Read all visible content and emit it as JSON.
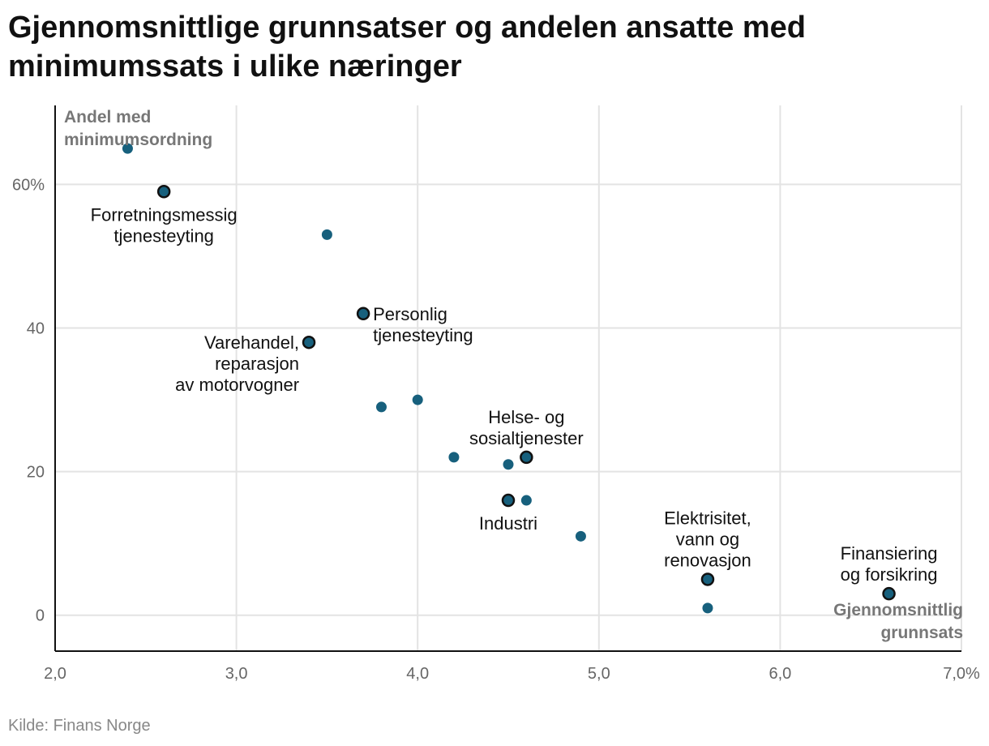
{
  "title": "Gjennomsnittlige grunnsatser og andelen ansatte med minimumssats i ulike næringer",
  "source": "Kilde: Finans Norge",
  "chart_data": {
    "type": "scatter",
    "title": "Gjennomsnittlige grunnsatser og andelen ansatte med minimumssats i ulike næringer",
    "xlabel": "Gjennomsnittlig grunnsats",
    "ylabel": "Andel med minimumsordning",
    "xlim": [
      2.0,
      7.0
    ],
    "ylim": [
      -5,
      71
    ],
    "x_ticks": [
      {
        "value": 2.0,
        "label": "2,0"
      },
      {
        "value": 3.0,
        "label": "3,0"
      },
      {
        "value": 4.0,
        "label": "4,0"
      },
      {
        "value": 5.0,
        "label": "5,0"
      },
      {
        "value": 6.0,
        "label": "6,0"
      },
      {
        "value": 7.0,
        "label": "7,0%"
      }
    ],
    "y_ticks": [
      {
        "value": 0,
        "label": "0"
      },
      {
        "value": 20,
        "label": "20"
      },
      {
        "value": 40,
        "label": "40"
      },
      {
        "value": 60,
        "label": "60%"
      }
    ],
    "colors": {
      "point": "#17607d",
      "highlight_stroke": "#111111",
      "grid": "#e3e3e3"
    },
    "points": [
      {
        "x": 2.4,
        "y": 65,
        "highlight": false
      },
      {
        "x": 2.6,
        "y": 59,
        "highlight": true,
        "label": [
          "Forretningsmessig",
          "tjenesteyting"
        ],
        "anchor": "middle"
      },
      {
        "x": 3.5,
        "y": 53,
        "highlight": false
      },
      {
        "x": 3.7,
        "y": 42,
        "highlight": true,
        "label": [
          "Personlig",
          "tjenesteyting"
        ],
        "anchor": "start"
      },
      {
        "x": 3.4,
        "y": 38,
        "highlight": true,
        "label": [
          "Varehandel,",
          "reparasjon",
          "av motorvogner"
        ],
        "anchor": "end"
      },
      {
        "x": 3.8,
        "y": 29,
        "highlight": false
      },
      {
        "x": 4.0,
        "y": 30,
        "highlight": false
      },
      {
        "x": 4.2,
        "y": 22,
        "highlight": false
      },
      {
        "x": 4.5,
        "y": 21,
        "highlight": false
      },
      {
        "x": 4.6,
        "y": 22,
        "highlight": true,
        "label": [
          "Helse- og",
          "sosialtjenester"
        ],
        "anchor": "middle"
      },
      {
        "x": 4.5,
        "y": 16,
        "highlight": true,
        "label": [
          "Industri"
        ],
        "anchor": "middle"
      },
      {
        "x": 4.6,
        "y": 16,
        "highlight": false
      },
      {
        "x": 4.9,
        "y": 11,
        "highlight": false
      },
      {
        "x": 5.6,
        "y": 5,
        "highlight": true,
        "label": [
          "Elektrisitet,",
          "vann og",
          "renovasjon"
        ],
        "anchor": "middle"
      },
      {
        "x": 5.6,
        "y": 1,
        "highlight": false
      },
      {
        "x": 6.6,
        "y": 3,
        "highlight": true,
        "label": [
          "Finansiering",
          "og forsikring"
        ],
        "anchor": "middle"
      }
    ]
  }
}
